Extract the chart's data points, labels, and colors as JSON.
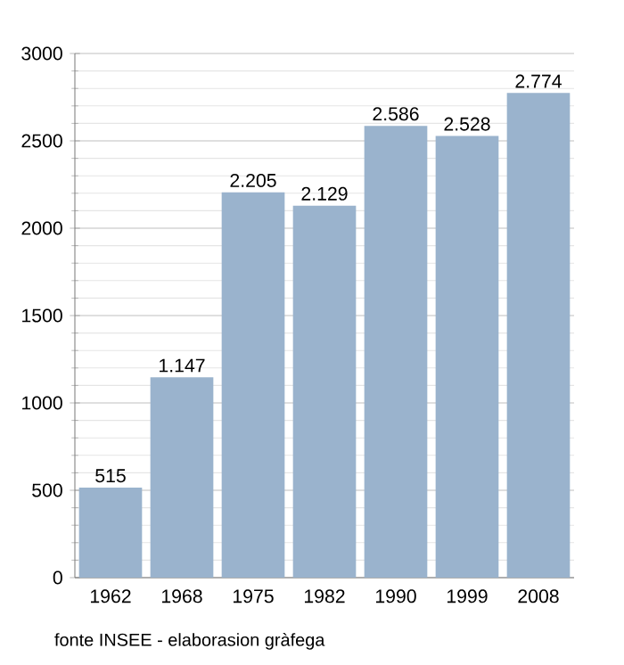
{
  "chart_data": {
    "type": "bar",
    "categories": [
      "1962",
      "1968",
      "1975",
      "1982",
      "1990",
      "1999",
      "2008"
    ],
    "values": [
      515,
      1147,
      2205,
      2129,
      2586,
      2528,
      2774
    ],
    "value_labels": [
      "515",
      "1.147",
      "2.205",
      "2.129",
      "2.586",
      "2.528",
      "2.774"
    ],
    "color": "#9ab3cd",
    "ylim": [
      0,
      3000
    ],
    "yticks": [
      0,
      500,
      1000,
      1500,
      2000,
      2500,
      3000
    ],
    "grid": "y",
    "annotations": [
      "fonte INSEE - elaborasion gràfega"
    ]
  }
}
